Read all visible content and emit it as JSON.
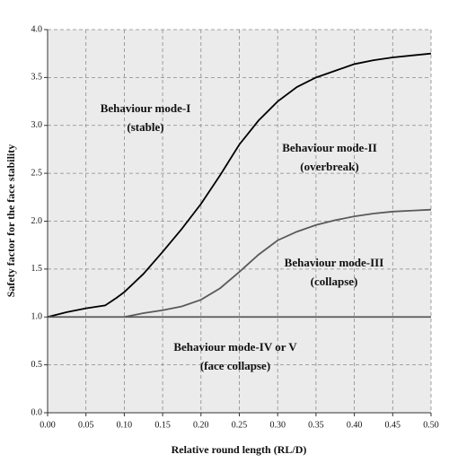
{
  "chart_data": {
    "type": "line",
    "xlabel": "Relative round length (RL/D)",
    "ylabel": "Safety factor for the face stability",
    "xlim": [
      0,
      0.5
    ],
    "ylim": [
      0,
      4
    ],
    "xticks": [
      {
        "value": 0,
        "label": "0.00"
      },
      0.05,
      {
        "value": 0.1,
        "label": "0.10"
      },
      0.15,
      {
        "value": 0.2,
        "label": "0.20"
      },
      0.25,
      {
        "value": 0.3,
        "label": "0.30"
      },
      0.35,
      {
        "value": 0.4,
        "label": "0.40"
      },
      0.45,
      {
        "value": 0.5,
        "label": "0.50"
      }
    ],
    "yticks": [
      {
        "value": 0,
        "label": "0.0"
      },
      0.5,
      {
        "value": 1,
        "label": "1.0"
      },
      1.5,
      {
        "value": 2,
        "label": "2.0"
      },
      2.5,
      {
        "value": 3,
        "label": "3.0"
      },
      3.5,
      {
        "value": 4,
        "label": "4.0"
      }
    ],
    "grid": true,
    "annotations": [
      "Behaviour mode-I",
      "(stable)",
      "Behaviour mode-II",
      "(overbreak)",
      "Behaviour mode-III",
      "(collapse)",
      "Behaviour mode-IV or V",
      "(face collapse)"
    ],
    "series": [
      {
        "color": "#000000",
        "x": [
          0,
          0.025,
          0.05,
          0.075,
          0.09,
          0.1,
          0.125,
          0.15,
          0.175,
          0.2,
          0.225,
          0.25,
          0.275,
          0.3,
          0.325,
          0.35,
          0.375,
          0.4,
          0.425,
          0.45,
          0.475,
          0.5
        ],
        "values": [
          1.0,
          1.05,
          1.09,
          1.12,
          1.2,
          1.26,
          1.45,
          1.68,
          1.92,
          2.18,
          2.48,
          2.8,
          3.05,
          3.25,
          3.4,
          3.5,
          3.57,
          3.64,
          3.68,
          3.71,
          3.73,
          3.75
        ]
      },
      {
        "color": "#5a5a5a",
        "x": [
          0.1,
          0.125,
          0.15,
          0.175,
          0.2,
          0.225,
          0.25,
          0.275,
          0.3,
          0.325,
          0.35,
          0.375,
          0.4,
          0.425,
          0.45,
          0.475,
          0.5
        ],
        "values": [
          1.0,
          1.04,
          1.07,
          1.11,
          1.18,
          1.3,
          1.47,
          1.65,
          1.8,
          1.89,
          1.96,
          2.01,
          2.05,
          2.08,
          2.1,
          2.11,
          2.12
        ]
      },
      {
        "color": "#5a5a5a",
        "x": [
          0,
          0.5
        ],
        "values": [
          1.0,
          1.0
        ]
      }
    ]
  }
}
